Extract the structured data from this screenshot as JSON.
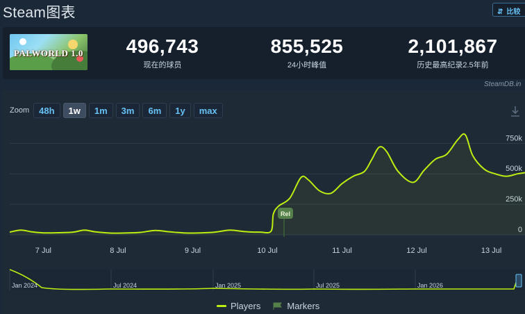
{
  "header": {
    "title": "Steam图表",
    "compare_label": "比较"
  },
  "game": {
    "banner_text": "PALWORLD 1.0"
  },
  "stats": [
    {
      "value": "496,743",
      "label": "现在的球员"
    },
    {
      "value": "855,525",
      "label": "24小时峰值"
    },
    {
      "value": "2,101,867",
      "label": "历史最高纪录2.5年前"
    }
  ],
  "chart_panel": {
    "watermark": "SteamDB.in",
    "zoom_label": "Zoom",
    "zoom_buttons": [
      "48h",
      "1w",
      "1m",
      "3m",
      "6m",
      "1y",
      "max"
    ],
    "active_zoom": "1w",
    "marker_label": "Rel"
  },
  "chart_data": {
    "type": "area",
    "x_ticks": [
      "7 Jul",
      "8 Jul",
      "9 Jul",
      "10 Jul",
      "11 Jul",
      "12 Jul",
      "13 Jul"
    ],
    "y_ticks": [
      "0",
      "250k",
      "500k",
      "750k"
    ],
    "ylim": [
      0,
      900000
    ],
    "grid": true,
    "series": [
      {
        "name": "Players",
        "color": "#beee11",
        "points": [
          [
            6.55,
            22000
          ],
          [
            6.7,
            38000
          ],
          [
            6.85,
            24000
          ],
          [
            7.0,
            16000
          ],
          [
            7.2,
            17000
          ],
          [
            7.4,
            22000
          ],
          [
            7.55,
            38000
          ],
          [
            7.7,
            24000
          ],
          [
            7.9,
            14000
          ],
          [
            8.1,
            15000
          ],
          [
            8.3,
            20000
          ],
          [
            8.5,
            36000
          ],
          [
            8.7,
            24000
          ],
          [
            8.9,
            15000
          ],
          [
            9.1,
            16000
          ],
          [
            9.3,
            22000
          ],
          [
            9.5,
            38000
          ],
          [
            9.7,
            26000
          ],
          [
            9.9,
            22000
          ],
          [
            10.05,
            30000
          ],
          [
            10.08,
            170000
          ],
          [
            10.15,
            235000
          ],
          [
            10.3,
            300000
          ],
          [
            10.45,
            470000
          ],
          [
            10.55,
            450000
          ],
          [
            10.7,
            360000
          ],
          [
            10.85,
            340000
          ],
          [
            11.0,
            420000
          ],
          [
            11.15,
            480000
          ],
          [
            11.3,
            520000
          ],
          [
            11.4,
            620000
          ],
          [
            11.5,
            720000
          ],
          [
            11.6,
            680000
          ],
          [
            11.75,
            520000
          ],
          [
            11.95,
            430000
          ],
          [
            12.1,
            530000
          ],
          [
            12.25,
            620000
          ],
          [
            12.4,
            660000
          ],
          [
            12.55,
            780000
          ],
          [
            12.65,
            820000
          ],
          [
            12.75,
            650000
          ],
          [
            12.9,
            540000
          ],
          [
            13.05,
            500000
          ],
          [
            13.2,
            480000
          ],
          [
            13.35,
            500000
          ],
          [
            13.45,
            510000
          ]
        ]
      }
    ],
    "navigator": {
      "labels": [
        "Jan 2024",
        "Jul 2024",
        "Jan 2025",
        "Jul 2025",
        "Jan 2026"
      ]
    },
    "legend": [
      "Players",
      "Markers"
    ]
  }
}
